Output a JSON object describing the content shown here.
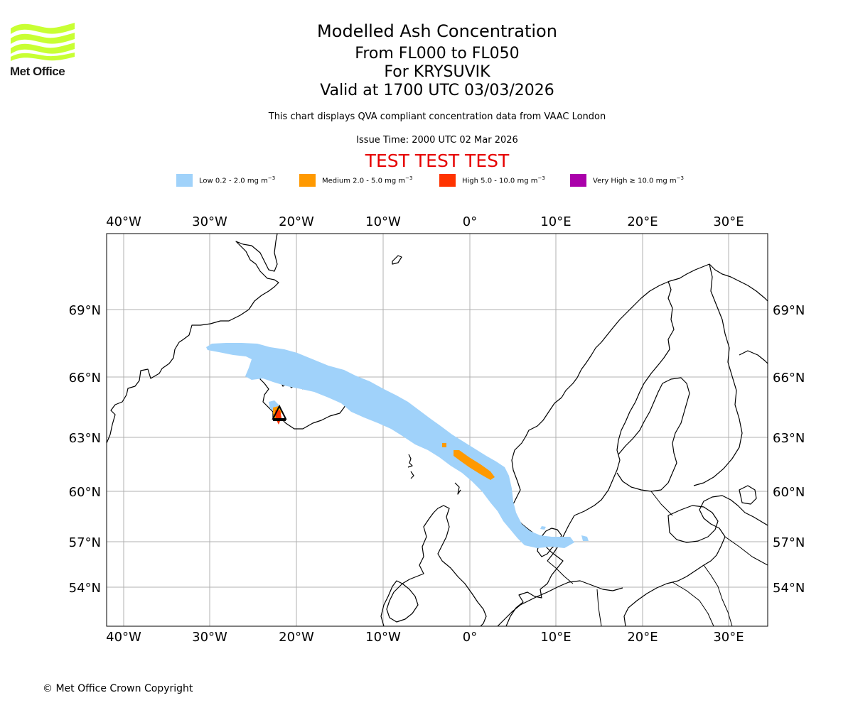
{
  "header": {
    "title": "Modelled Ash Concentration",
    "levels": "From FL000 to FL050",
    "volcano": "For KRYSUVIK",
    "valid": "Valid at 1700 UTC 03/03/2026",
    "disclaimer": "This chart displays QVA compliant concentration data from VAAC London",
    "issue_time": "Issue Time: 2000 UTC 02 Mar 2026",
    "test_banner": "TEST TEST TEST"
  },
  "logo": {
    "text": "Met Office",
    "icon": "met-office-wave-logo",
    "color": "#c8ff33"
  },
  "legend": [
    {
      "label": "Low 0.2 - 2.0 mg m",
      "unit_exp": "−3",
      "color": "#a0d2fa"
    },
    {
      "label": "Medium 2.0 - 5.0 mg m",
      "unit_exp": "−3",
      "color": "#ff9900"
    },
    {
      "label": "High 5.0 - 10.0 mg m",
      "unit_exp": "−3",
      "color": "#ff3300"
    },
    {
      "label": "Very High  ≥  10.0 mg m",
      "unit_exp": "−3",
      "color": "#aa00aa"
    }
  ],
  "map": {
    "lon_labels": [
      "40°W",
      "30°W",
      "20°W",
      "10°W",
      "0°",
      "10°E",
      "20°E",
      "30°E"
    ],
    "lat_labels": [
      "69°N",
      "66°N",
      "63°N",
      "60°N",
      "57°N",
      "54°N"
    ],
    "volcano_marker": "KRYSUVIK"
  },
  "footer": {
    "copyright": "© Met Office Crown Copyright"
  }
}
